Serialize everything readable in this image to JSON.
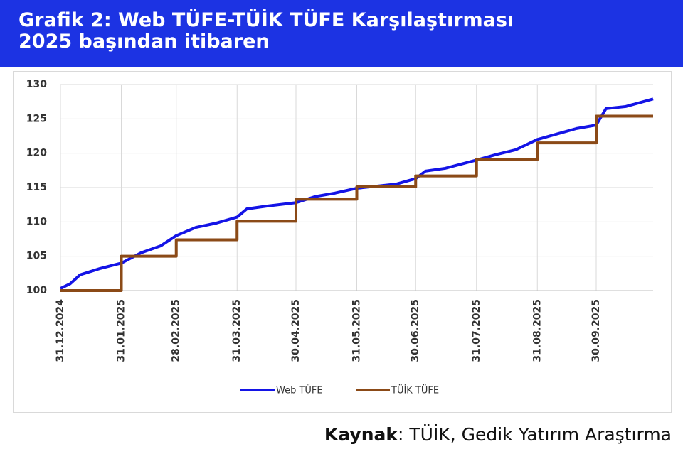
{
  "chart_data": {
    "type": "line",
    "title": [
      "Grafik 2: Web TÜFE-TÜİK TÜFE Karşılaştırması",
      "2025 başından itibaren"
    ],
    "source": {
      "label": "Kaynak",
      "text": ": TÜİK, Gedik Yatırım Araştırma"
    },
    "x": [
      "31.12.2024",
      "05.01.2025",
      "10.01.2025",
      "20.01.2025",
      "31.01.2025",
      "10.02.2025",
      "20.02.2025",
      "28.02.2025",
      "10.03.2025",
      "20.03.2025",
      "31.03.2025",
      "05.04.2025",
      "15.04.2025",
      "30.04.2025",
      "10.05.2025",
      "20.05.2025",
      "31.05.2025",
      "10.06.2025",
      "20.06.2025",
      "30.06.2025",
      "05.07.2025",
      "15.07.2025",
      "31.07.2025",
      "10.08.2025",
      "20.08.2025",
      "31.08.2025",
      "10.09.2025",
      "20.09.2025",
      "30.09.2025",
      "05.10.2025",
      "15.10.2025",
      "29.10.2025"
    ],
    "series": [
      {
        "name": "Web TÜFE",
        "color": "#1414e6",
        "step": false,
        "values": [
          100.3,
          101.0,
          102.3,
          103.2,
          104.0,
          105.5,
          106.5,
          108.0,
          109.2,
          109.8,
          110.7,
          111.9,
          112.3,
          112.8,
          113.7,
          114.2,
          114.9,
          115.2,
          115.5,
          116.3,
          117.4,
          117.8,
          119.0,
          119.8,
          120.5,
          122.0,
          122.8,
          123.6,
          124.1,
          126.5,
          126.8,
          127.9
        ]
      },
      {
        "name": "TÜİK TÜFE",
        "color": "#8b4a17",
        "step": true,
        "values": [
          100,
          100,
          100,
          100,
          105,
          105,
          105,
          107.4,
          107.4,
          107.4,
          110.1,
          110.1,
          110.1,
          113.3,
          113.3,
          113.3,
          115.1,
          115.1,
          115.1,
          116.7,
          116.7,
          116.7,
          119.1,
          119.1,
          119.1,
          121.5,
          121.5,
          121.5,
          125.4,
          125.4,
          125.4,
          125.4
        ]
      }
    ],
    "xlim": [
      "31.12.2024",
      "29.10.2025"
    ],
    "xticks": [
      "31.12.2024",
      "31.01.2025",
      "28.02.2025",
      "31.03.2025",
      "30.04.2025",
      "31.05.2025",
      "30.06.2025",
      "31.07.2025",
      "31.08.2025",
      "30.09.2025"
    ],
    "ylim": [
      100,
      130
    ],
    "yticks": [
      100,
      105,
      110,
      115,
      120,
      125,
      130
    ],
    "grid": true,
    "legend": "bottom"
  }
}
